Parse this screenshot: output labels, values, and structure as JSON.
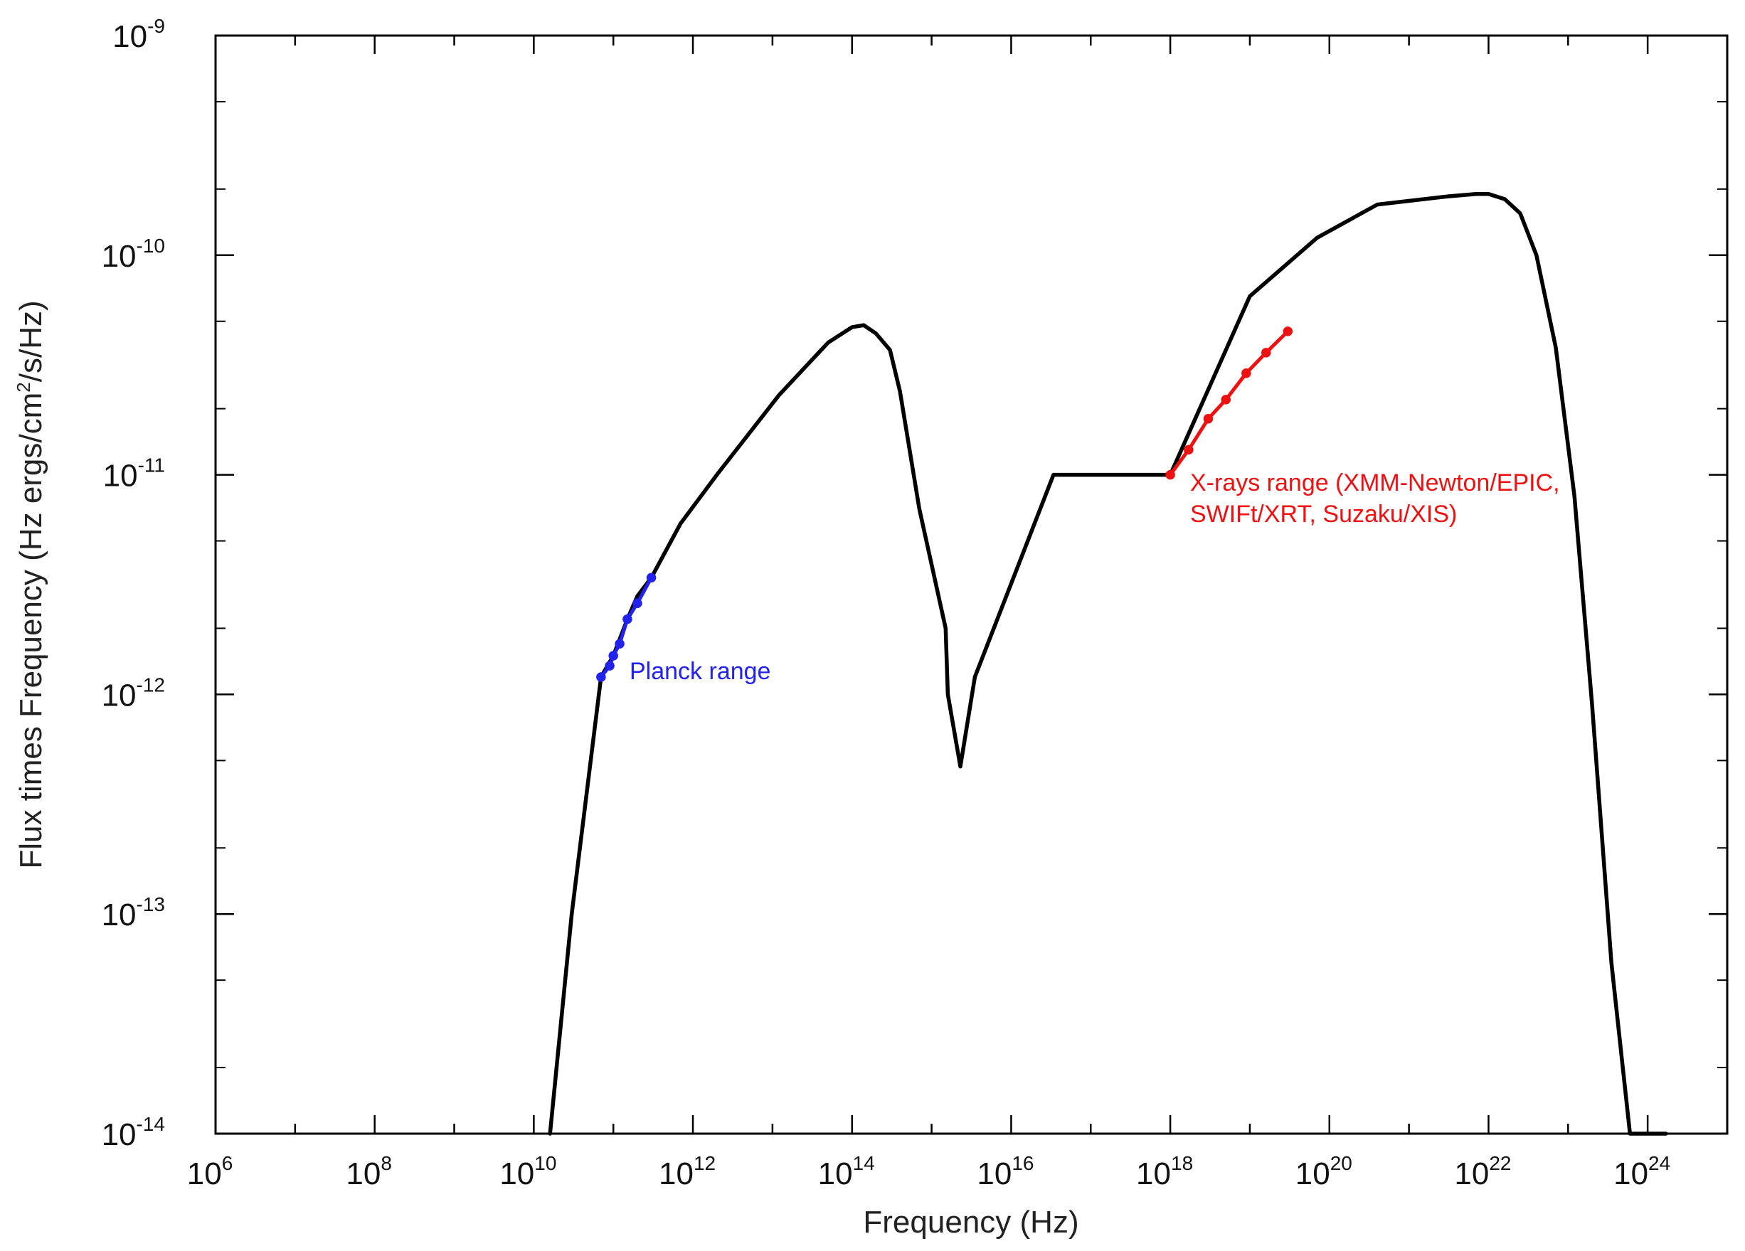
{
  "chart_data": {
    "type": "line",
    "xlabel": "Frequency (Hz)",
    "ylabel_parts": [
      "Flux times Frequency (Hz ergs/cm",
      "2",
      "/s/Hz)"
    ],
    "x_scale": "log",
    "y_scale": "log",
    "xlim": [
      1000000.0,
      1e+25
    ],
    "ylim": [
      1e-14,
      1e-09
    ],
    "x_ticks": [
      {
        "base": "10",
        "exp": "6",
        "value": 1000000.0
      },
      {
        "base": "10",
        "exp": "8",
        "value": 100000000.0
      },
      {
        "base": "10",
        "exp": "10",
        "value": 10000000000.0
      },
      {
        "base": "10",
        "exp": "12",
        "value": 1000000000000.0
      },
      {
        "base": "10",
        "exp": "14",
        "value": 100000000000000.0
      },
      {
        "base": "10",
        "exp": "16",
        "value": 1e+16
      },
      {
        "base": "10",
        "exp": "18",
        "value": 1e+18
      },
      {
        "base": "10",
        "exp": "20",
        "value": 1e+20
      },
      {
        "base": "10",
        "exp": "22",
        "value": 1e+22
      },
      {
        "base": "10",
        "exp": "24",
        "value": 1e+24
      }
    ],
    "y_ticks": [
      {
        "base": "10",
        "exp": "-14",
        "value": 1e-14
      },
      {
        "base": "10",
        "exp": "-13",
        "value": 1e-13
      },
      {
        "base": "10",
        "exp": "-12",
        "value": 1e-12
      },
      {
        "base": "10",
        "exp": "-11",
        "value": 1e-11
      },
      {
        "base": "10",
        "exp": "-10",
        "value": 1e-10
      },
      {
        "base": "10",
        "exp": "-9",
        "value": 1e-09
      }
    ],
    "grid": false,
    "series": [
      {
        "color": "#000000",
        "x": [
          16000000000.0,
          30000000000.0,
          70000000000.0,
          100000000000.0,
          150000000000.0,
          200000000000.0,
          300000000000.0,
          700000000000.0,
          2000000000000.0,
          12000000000000.0,
          50000000000000.0,
          100000000000000.0,
          140000000000000.0,
          200000000000000.0,
          300000000000000.0,
          400000000000000.0,
          700000000000000.0,
          1500000000000000.0,
          1600000000000000.0,
          2300000000000000.0,
          3500000000000000.0,
          3.4e+16,
          3e+17,
          1e+18,
          1e+19,
          7e+19,
          4e+20,
          3e+21,
          7e+21,
          1e+22,
          1.6e+22,
          2.5e+22,
          4e+22,
          7e+22,
          1.2e+23,
          2e+23,
          3.5e+23,
          6e+23,
          1e+24,
          1.7e+24
        ],
        "y": [
          1e-14,
          1e-13,
          1.2e-12,
          1.5e-12,
          2.2e-12,
          2.8e-12,
          3.4e-12,
          6e-12,
          1e-11,
          2.3e-11,
          4e-11,
          4.7e-11,
          4.8e-11,
          4.4e-11,
          3.7e-11,
          2.4e-11,
          7e-12,
          2e-12,
          1e-12,
          4.7e-13,
          1.2e-12,
          1e-11,
          1e-11,
          1e-11,
          6.5e-11,
          1.2e-10,
          1.7e-10,
          1.85e-10,
          1.9e-10,
          1.9e-10,
          1.8e-10,
          1.55e-10,
          1e-10,
          3.8e-11,
          8e-12,
          9e-13,
          6e-14,
          1e-14,
          1e-14,
          1e-14
        ]
      },
      {
        "color": "#2222ee",
        "x": [
          70000000000.0,
          90000000000.0,
          100000000000.0,
          120000000000.0,
          150000000000.0,
          200000000000.0,
          300000000000.0
        ],
        "y": [
          1.2e-12,
          1.35e-12,
          1.5e-12,
          1.7e-12,
          2.2e-12,
          2.6e-12,
          3.4e-12
        ]
      },
      {
        "color": "#ee1111",
        "x": [
          1e+18,
          1.7e+18,
          3e+18,
          5e+18,
          9e+18,
          1.6e+19,
          3e+19
        ],
        "y": [
          1e-11,
          1.3e-11,
          1.8e-11,
          2.2e-11,
          2.9e-11,
          3.6e-11,
          4.5e-11
        ]
      }
    ],
    "annotations": [
      {
        "text": "Planck range",
        "color": "#2222ee"
      },
      {
        "lines": [
          "X-rays range (XMM-Newton/EPIC,",
          "SWIFt/XRT, Suzaku/XIS)"
        ],
        "color": "#ee1111"
      }
    ]
  }
}
